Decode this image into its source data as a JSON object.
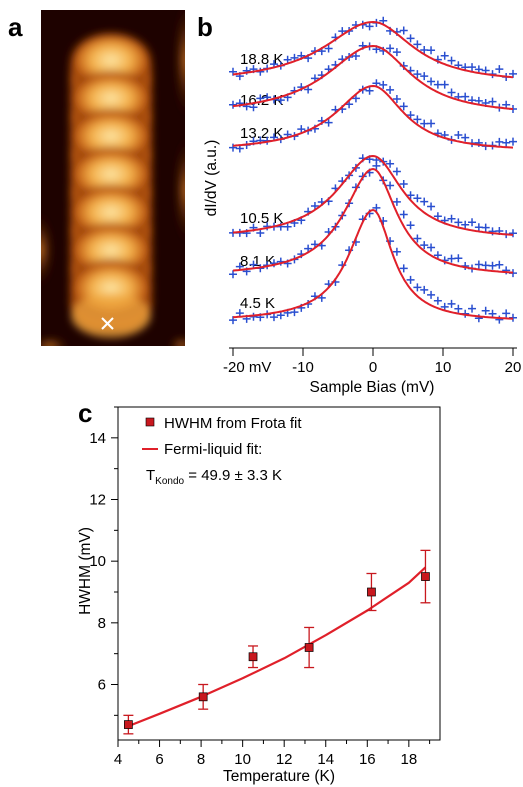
{
  "panels": {
    "a": {
      "letter": "a",
      "marker_color": "#ffffff"
    },
    "b": {
      "letter": "b"
    },
    "c": {
      "letter": "c"
    }
  },
  "chart_data": [
    {
      "type": "line",
      "panel": "b",
      "title": "",
      "xlabel": "Sample Bias (mV)",
      "ylabel": "dI/dV (a.u.)",
      "xlim": [
        -20,
        20
      ],
      "xticks": [
        -20,
        -10,
        0,
        10,
        20
      ],
      "xtick_labels": [
        "-20 mV",
        "-10",
        "0",
        "10",
        "20"
      ],
      "x_edge_label": "",
      "spectra": [
        {
          "label": "4.5 K",
          "temperature": 4.5,
          "hwhm": 4.7
        },
        {
          "label": "8.1 K",
          "temperature": 8.1,
          "hwhm": 5.6
        },
        {
          "label": "10.5 K",
          "temperature": 10.5,
          "hwhm": 6.9
        },
        {
          "label": "13.2 K",
          "temperature": 13.2,
          "hwhm": 7.2
        },
        {
          "label": "16.2 K",
          "temperature": 16.2,
          "hwhm": 9.0
        },
        {
          "label": "18.8 K",
          "temperature": 18.8,
          "hwhm": 9.5
        }
      ],
      "data_color": "#2a4fd0",
      "fit_color": "#e0202a"
    },
    {
      "type": "scatter",
      "panel": "c",
      "title": "",
      "xlabel": "Temperature (K)",
      "ylabel": "HWHM (mV)",
      "xlim": [
        4,
        19.5
      ],
      "ylim": [
        4.2,
        15
      ],
      "xticks": [
        4,
        6,
        8,
        10,
        12,
        14,
        16,
        18
      ],
      "yticks": [
        6,
        8,
        10,
        12,
        14
      ],
      "legend_position": "top-left",
      "series": [
        {
          "name": "HWHM from Frota fit",
          "x": [
            4.5,
            8.1,
            10.5,
            13.2,
            16.2,
            18.8
          ],
          "y": [
            4.7,
            5.6,
            6.9,
            7.2,
            9.0,
            9.5
          ],
          "err": [
            0.3,
            0.4,
            0.35,
            0.65,
            0.6,
            0.85
          ],
          "color": "#c8181e"
        },
        {
          "name": "Fermi-liquid fit:",
          "x": [
            4.5,
            6,
            8,
            10,
            12,
            14,
            16,
            18,
            18.8
          ],
          "y": [
            4.65,
            5.05,
            5.6,
            6.2,
            6.85,
            7.6,
            8.4,
            9.3,
            9.8
          ],
          "color": "#e0202a"
        }
      ],
      "annotation": {
        "prefix": "T",
        "subscript": "Kondo",
        "value": " = 49.9 ± 3.3 K"
      }
    }
  ]
}
